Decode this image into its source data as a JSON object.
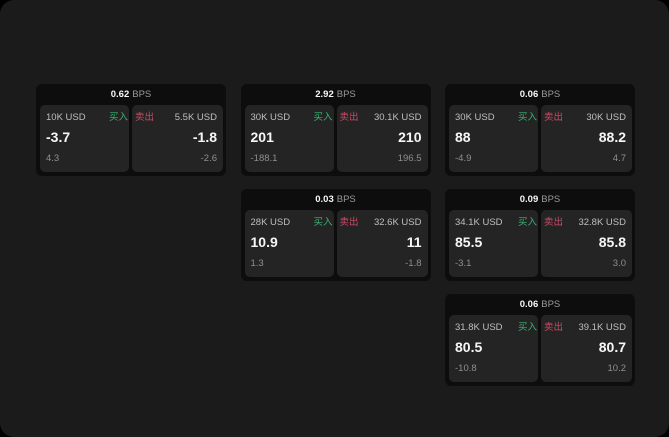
{
  "labels": {
    "buy": "买入",
    "sell": "卖出",
    "bps_unit": "BPS"
  },
  "colors": {
    "outer-bg": "#000000",
    "page-bg": "#1b1b1b",
    "card-bg": "#0d0d0d",
    "panel-bg": "#242424",
    "text-bright": "#f7f7f7",
    "text-label": "#bfbfbf",
    "text-dim": "#9a9a9a",
    "text-sub": "#8f8f8f",
    "buy-green": "#3bb273",
    "sell-red": "#cc4a66"
  },
  "cards": [
    {
      "bps": "0.62",
      "buy": {
        "size": "10K USD",
        "value": "-3.7",
        "sub": "4.3"
      },
      "sell": {
        "size": "5.5K USD",
        "value": "-1.8",
        "sub": "-2.6"
      }
    },
    {
      "bps": "2.92",
      "buy": {
        "size": "30K USD",
        "value": "201",
        "sub": "-188.1"
      },
      "sell": {
        "size": "30.1K USD",
        "value": "210",
        "sub": "196.5"
      }
    },
    {
      "bps": "0.06",
      "buy": {
        "size": "30K USD",
        "value": "88",
        "sub": "-4.9"
      },
      "sell": {
        "size": "30K USD",
        "value": "88.2",
        "sub": "4.7"
      }
    },
    {
      "bps": "0.03",
      "buy": {
        "size": "28K USD",
        "value": "10.9",
        "sub": "1.3"
      },
      "sell": {
        "size": "32.6K USD",
        "value": "11",
        "sub": "-1.8"
      }
    },
    {
      "bps": "0.09",
      "buy": {
        "size": "34.1K USD",
        "value": "85.5",
        "sub": "-3.1"
      },
      "sell": {
        "size": "32.8K USD",
        "value": "85.8",
        "sub": "3.0"
      }
    },
    {
      "bps": "0.06",
      "buy": {
        "size": "31.8K USD",
        "value": "80.5",
        "sub": "-10.8"
      },
      "sell": {
        "size": "39.1K USD",
        "value": "80.7",
        "sub": "10.2"
      }
    }
  ]
}
